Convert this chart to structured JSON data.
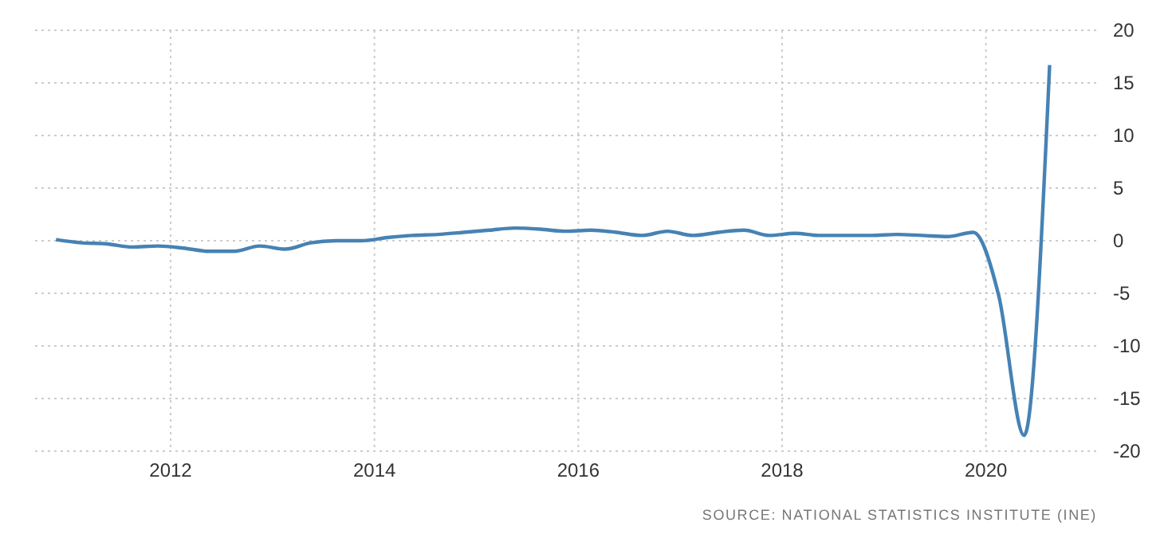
{
  "chart_data": {
    "type": "line",
    "x": [
      2010.875,
      2011.125,
      2011.375,
      2011.625,
      2011.875,
      2012.125,
      2012.375,
      2012.625,
      2012.875,
      2013.125,
      2013.375,
      2013.625,
      2013.875,
      2014.125,
      2014.375,
      2014.625,
      2014.875,
      2015.125,
      2015.375,
      2015.625,
      2015.875,
      2016.125,
      2016.375,
      2016.625,
      2016.875,
      2017.125,
      2017.375,
      2017.625,
      2017.875,
      2018.125,
      2018.375,
      2018.625,
      2018.875,
      2019.125,
      2019.375,
      2019.625,
      2019.875,
      2020.125,
      2020.375,
      2020.625
    ],
    "series": [
      {
        "color": "#4682b4",
        "values": [
          0.1,
          -0.2,
          -0.3,
          -0.6,
          -0.5,
          -0.7,
          -1.0,
          -1.0,
          -0.5,
          -0.8,
          -0.2,
          0.0,
          0.0,
          0.3,
          0.5,
          0.6,
          0.8,
          1.0,
          1.2,
          1.1,
          0.9,
          1.0,
          0.8,
          0.5,
          0.9,
          0.5,
          0.8,
          1.0,
          0.5,
          0.7,
          0.5,
          0.5,
          0.5,
          0.6,
          0.5,
          0.4,
          0.8,
          -5.2,
          -18.5,
          16.7
        ]
      }
    ],
    "xlim": [
      2010.67,
      2021.09
    ],
    "xticks": [
      {
        "value": 2012,
        "label": "2012"
      },
      {
        "value": 2014,
        "label": "2014"
      },
      {
        "value": 2016,
        "label": "2016"
      },
      {
        "value": 2018,
        "label": "2018"
      },
      {
        "value": 2020,
        "label": "2020"
      }
    ],
    "ylim": [
      -20,
      20
    ],
    "yticks": [
      -20,
      -15,
      -10,
      -5,
      0,
      5,
      10,
      15,
      20
    ],
    "grid": true,
    "line_style": "solid",
    "marker": "none",
    "annotations": [
      "SOURCE: NATIONAL STATISTICS INSTITUTE (INE)"
    ]
  }
}
